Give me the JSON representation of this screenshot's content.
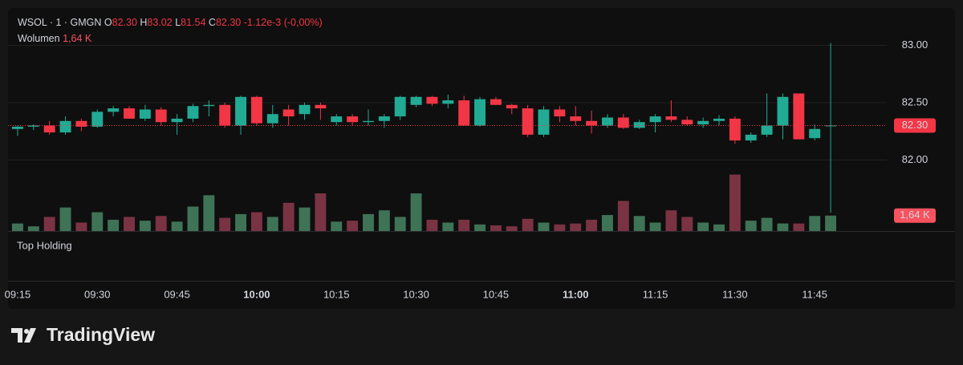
{
  "header": {
    "symbol": "WSOL · 1 · GMGN",
    "o_label": "O",
    "open": "82.30",
    "h_label": "H",
    "high": "83.02",
    "l_label": "L",
    "low": "81.54",
    "c_label": "C",
    "close": "82.30",
    "change": "-1.12e-3 (-0,00%)",
    "volume_label": "Wolumen",
    "volume": "1,64 K"
  },
  "chart_data": {
    "type": "candlestick",
    "x": [
      "09:15",
      "09:18",
      "09:21",
      "09:24",
      "09:27",
      "09:30",
      "09:33",
      "09:36",
      "09:39",
      "09:42",
      "09:45",
      "09:48",
      "09:51",
      "09:54",
      "09:57",
      "10:00",
      "10:03",
      "10:06",
      "10:09",
      "10:12",
      "10:15",
      "10:18",
      "10:21",
      "10:24",
      "10:27",
      "10:30",
      "10:33",
      "10:36",
      "10:39",
      "10:42",
      "10:45",
      "10:48",
      "10:51",
      "10:54",
      "10:57",
      "11:00",
      "11:03",
      "11:06",
      "11:09",
      "11:12",
      "11:15",
      "11:18",
      "11:21",
      "11:24",
      "11:27",
      "11:30",
      "11:33",
      "11:36",
      "11:39",
      "11:42",
      "11:45",
      "11:48"
    ],
    "candles": [
      [
        82.27,
        82.3,
        82.21,
        82.29
      ],
      [
        82.29,
        82.31,
        82.26,
        82.3
      ],
      [
        82.3,
        82.34,
        82.22,
        82.24
      ],
      [
        82.24,
        82.38,
        82.22,
        82.34
      ],
      [
        82.34,
        82.36,
        82.25,
        82.29
      ],
      [
        82.29,
        82.44,
        82.28,
        82.42
      ],
      [
        82.42,
        82.47,
        82.38,
        82.45
      ],
      [
        82.45,
        82.47,
        82.36,
        82.36
      ],
      [
        82.36,
        82.48,
        82.34,
        82.44
      ],
      [
        82.44,
        82.46,
        82.3,
        82.33
      ],
      [
        82.33,
        82.4,
        82.22,
        82.36
      ],
      [
        82.36,
        82.49,
        82.33,
        82.47
      ],
      [
        82.47,
        82.52,
        82.38,
        82.48
      ],
      [
        82.48,
        82.5,
        82.28,
        82.3
      ],
      [
        82.3,
        82.56,
        82.22,
        82.55
      ],
      [
        82.55,
        82.56,
        82.3,
        82.32
      ],
      [
        82.32,
        82.48,
        82.28,
        82.4
      ],
      [
        82.44,
        82.48,
        82.3,
        82.38
      ],
      [
        82.4,
        82.5,
        82.35,
        82.48
      ],
      [
        82.48,
        82.5,
        82.35,
        82.45
      ],
      [
        82.33,
        82.4,
        82.3,
        82.38
      ],
      [
        82.38,
        82.4,
        82.3,
        82.33
      ],
      [
        82.33,
        82.44,
        82.3,
        82.34
      ],
      [
        82.34,
        82.4,
        82.28,
        82.38
      ],
      [
        82.38,
        82.56,
        82.35,
        82.55
      ],
      [
        82.48,
        82.56,
        82.46,
        82.55
      ],
      [
        82.55,
        82.56,
        82.47,
        82.49
      ],
      [
        82.49,
        82.57,
        82.45,
        82.52
      ],
      [
        82.52,
        82.56,
        82.3,
        82.3
      ],
      [
        82.3,
        82.55,
        82.29,
        82.53
      ],
      [
        82.53,
        82.55,
        82.48,
        82.48
      ],
      [
        82.48,
        82.49,
        82.4,
        82.45
      ],
      [
        82.45,
        82.48,
        82.2,
        82.22
      ],
      [
        82.22,
        82.47,
        82.2,
        82.44
      ],
      [
        82.44,
        82.47,
        82.33,
        82.38
      ],
      [
        82.38,
        82.47,
        82.3,
        82.34
      ],
      [
        82.34,
        82.43,
        82.23,
        82.3
      ],
      [
        82.3,
        82.4,
        82.28,
        82.37
      ],
      [
        82.37,
        82.4,
        82.27,
        82.28
      ],
      [
        82.28,
        82.35,
        82.27,
        82.33
      ],
      [
        82.33,
        82.4,
        82.24,
        82.38
      ],
      [
        82.38,
        82.52,
        82.33,
        82.35
      ],
      [
        82.35,
        82.38,
        82.3,
        82.31
      ],
      [
        82.31,
        82.37,
        82.28,
        82.34
      ],
      [
        82.34,
        82.39,
        82.3,
        82.36
      ],
      [
        82.36,
        82.38,
        82.14,
        82.17
      ],
      [
        82.17,
        82.24,
        82.15,
        82.22
      ],
      [
        82.22,
        82.58,
        82.2,
        82.3
      ],
      [
        82.3,
        82.58,
        82.18,
        82.55
      ],
      [
        82.58,
        82.58,
        82.18,
        82.18
      ],
      [
        82.19,
        82.31,
        82.17,
        82.27
      ],
      [
        82.3,
        83.02,
        81.54,
        82.3
      ]
    ],
    "volume": [
      800,
      500,
      1500,
      2500,
      900,
      2000,
      1200,
      1500,
      1100,
      1600,
      1000,
      2600,
      3800,
      1400,
      1800,
      2000,
      1500,
      3000,
      2500,
      4000,
      1000,
      1100,
      1800,
      2200,
      1500,
      4000,
      1200,
      900,
      1200,
      700,
      600,
      500,
      1300,
      900,
      700,
      800,
      1200,
      1700,
      3200,
      1600,
      900,
      2200,
      1500,
      900,
      700,
      6000,
      1100,
      1400,
      800,
      800,
      1600,
      1640
    ],
    "up_color": "#22ab94",
    "down_color": "#f23645",
    "up_volume_color": "#3f7356",
    "down_volume_color": "#7a3343",
    "ylim": [
      81.38,
      83.29
    ],
    "yticks": [
      {
        "value": 82,
        "label": "82.00"
      },
      {
        "value": 82.5,
        "label": "82.50"
      },
      {
        "value": 83,
        "label": "83.00"
      }
    ],
    "vlim": [
      0,
      7500
    ],
    "xticks": [
      "09:15",
      "09:30",
      "09:45",
      "10:00",
      "10:15",
      "10:30",
      "10:45",
      "11:00",
      "11:15",
      "11:30",
      "11:45"
    ],
    "last_price": {
      "value": 82.3,
      "label": "82.30"
    },
    "last_volume": {
      "value": 1640,
      "label": "1,64 K"
    },
    "grid": true
  },
  "pane": {
    "title": "Top Holding"
  },
  "brand": "TradingView"
}
